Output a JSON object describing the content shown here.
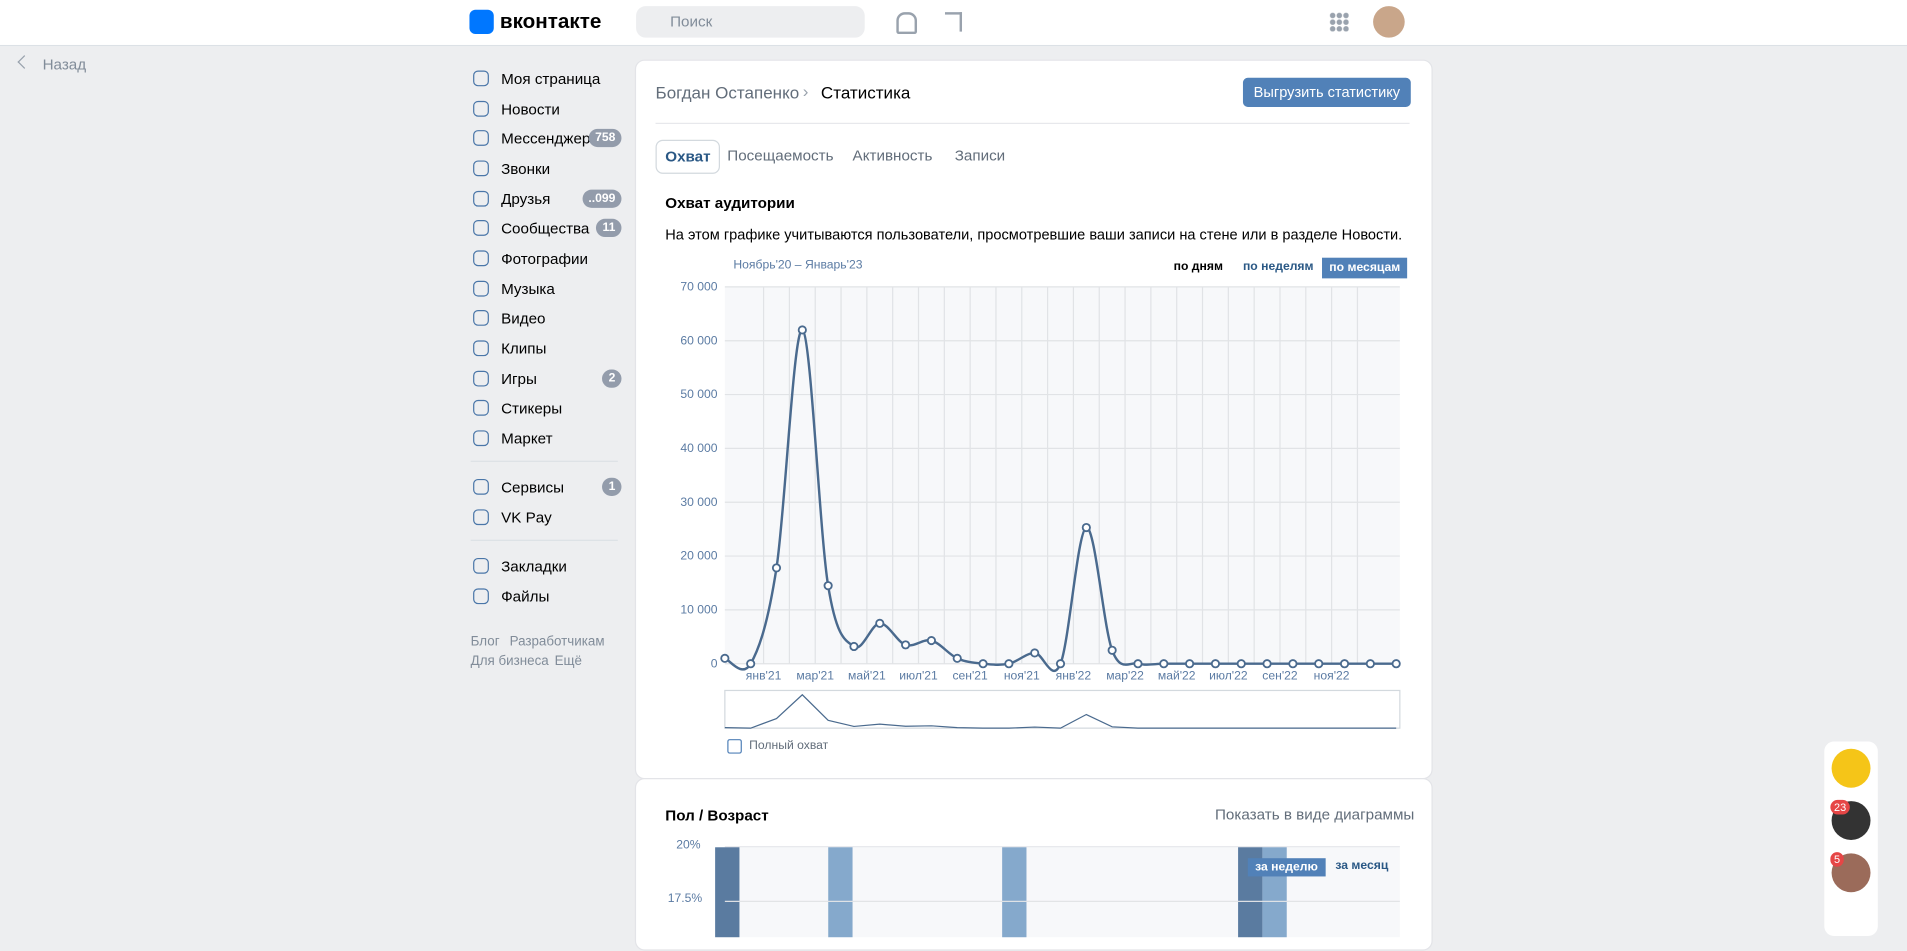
{
  "header": {
    "logo": "вконтакте",
    "search_placeholder": "Поиск"
  },
  "back": "Назад",
  "nav": [
    {
      "label": "Моя страница"
    },
    {
      "label": "Новости"
    },
    {
      "label": "Мессенджер",
      "badge": "758"
    },
    {
      "label": "Звонки"
    },
    {
      "label": "Друзья",
      "badge": "..099"
    },
    {
      "label": "Сообщества",
      "badge": "11"
    },
    {
      "label": "Фотографии"
    },
    {
      "label": "Музыка"
    },
    {
      "label": "Видео"
    },
    {
      "label": "Клипы"
    },
    {
      "label": "Игры",
      "badge": "2"
    },
    {
      "label": "Стикеры"
    },
    {
      "label": "Маркет"
    },
    {
      "label": "Сервисы",
      "badge": "1"
    },
    {
      "label": "VK Pay"
    },
    {
      "label": "Закладки"
    },
    {
      "label": "Файлы"
    }
  ],
  "footer_links": [
    "Блог",
    "Разработчикам",
    "Для бизнеса",
    "Ещё"
  ],
  "breadcrumb": [
    "Богдан Остапенко",
    "Статистика"
  ],
  "export_button": "Выгрузить статистику",
  "tabs": [
    "Охват",
    "Посещаемость",
    "Активность",
    "Записи"
  ],
  "chart_data": {
    "type": "line",
    "title": "Охват аудитории",
    "subtitle": "На этом графике учитываются пользователи, просмотревшие ваши записи на стене или в разделе Новости.",
    "period": "Ноябрь'20 – Январь'23",
    "modes": [
      "по дням",
      "по неделям",
      "по месяцам"
    ],
    "x_labels": [
      "янв'21",
      "мар'21",
      "май'21",
      "июл'21",
      "сен'21",
      "ноя'21",
      "янв'22",
      "мар'22",
      "май'22",
      "июл'22",
      "сен'22",
      "ноя'22"
    ],
    "series": [
      {
        "name": "Полный охват",
        "color": "#4a6a8e",
        "values": [
          1000,
          0,
          17800,
          62000,
          14500,
          3200,
          7500,
          3500,
          4300,
          1000,
          0,
          0,
          2000,
          0,
          25300,
          2500,
          0,
          0,
          0,
          0,
          0,
          0,
          0,
          0,
          0,
          0,
          0
        ]
      }
    ],
    "ylim": [
      0,
      70000
    ],
    "yticks": [
      0,
      {
        "value": 10000,
        "label": "10 000"
      },
      {
        "value": 20000,
        "label": "20 000"
      },
      {
        "value": 30000,
        "label": "30 000"
      },
      {
        "value": 40000,
        "label": "40 000"
      },
      {
        "value": 50000,
        "label": "50 000"
      },
      {
        "value": 60000,
        "label": "60 000"
      },
      {
        "value": 70000,
        "label": "70 000"
      }
    ],
    "grid": true
  },
  "gender_age": {
    "title": "Пол / Возраст",
    "view_toggle": "Показать в виде диаграммы",
    "yticks": [
      "20%",
      "17.5%"
    ],
    "periods": [
      "за неделю",
      "за месяц"
    ]
  },
  "chat_badges": [
    "23",
    "5"
  ]
}
